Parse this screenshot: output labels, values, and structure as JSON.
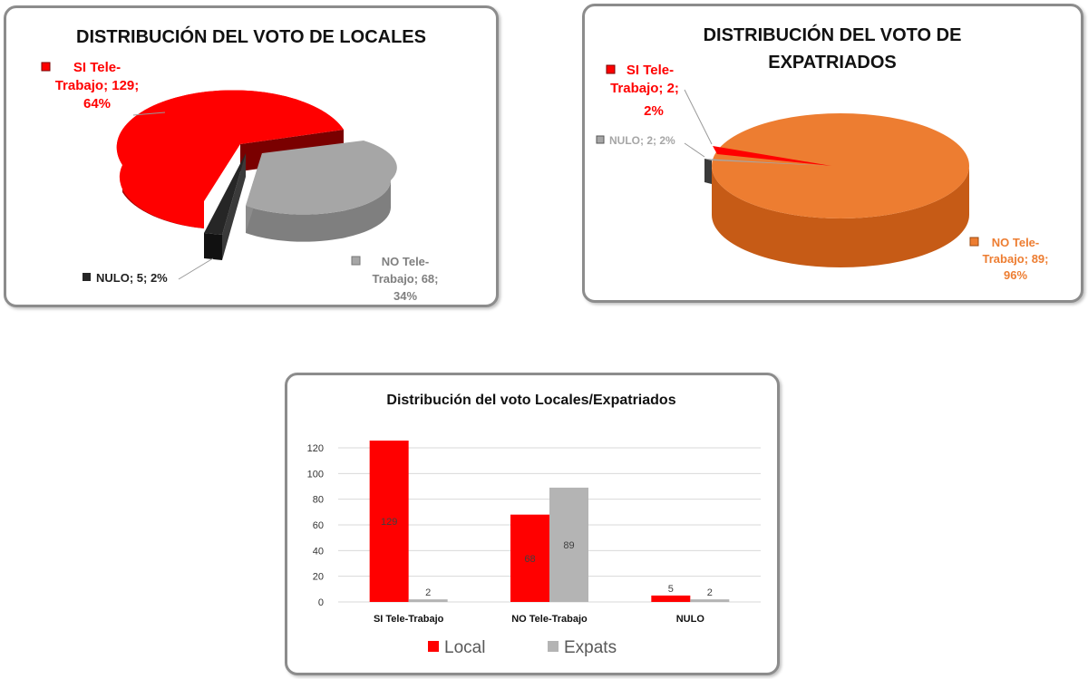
{
  "charts": {
    "locales": {
      "title": "DISTRIBUCIÓN DEL VOTO  DE LOCALES",
      "slices": [
        {
          "name_line1": "SI Tele-",
          "name_line2": "Trabajo;  129;",
          "pct": "64%",
          "value": 129,
          "color": "#ff0000"
        },
        {
          "name_line1": "NO Tele-",
          "name_line2": "Trabajo; 68;",
          "pct": "34%",
          "value": 68,
          "color": "#a6a6a6"
        },
        {
          "label": "NULO; 5; 2%",
          "value": 5,
          "color": "#262626"
        }
      ]
    },
    "expats": {
      "title_line1": "DISTRIBUCIÓN DEL VOTO  DE",
      "title_line2": "EXPATRIADOS",
      "slices": [
        {
          "name_line1": "SI Tele-",
          "name_line2": "Trabajo;  2;",
          "pct": "2%",
          "value": 2,
          "color": "#ff0000"
        },
        {
          "label": "NULO;  2;  2%",
          "value": 2,
          "color": "#a6a6a6"
        },
        {
          "name_line1": "NO Tele-",
          "name_line2": "Trabajo; 89;",
          "pct": "96%",
          "value": 89,
          "color": "#ed7d31"
        }
      ]
    },
    "bar": {
      "title": "Distribución del voto Locales/Expatriados"
    }
  },
  "chart_data": [
    {
      "type": "pie",
      "title": "DISTRIBUCIÓN DEL VOTO  DE LOCALES",
      "categories": [
        "SI Tele-Trabajo",
        "NO Tele-Trabajo",
        "NULO"
      ],
      "values": [
        129,
        68,
        5
      ],
      "percents": [
        64,
        34,
        2
      ],
      "colors": [
        "#ff0000",
        "#a6a6a6",
        "#262626"
      ]
    },
    {
      "type": "pie",
      "title": "DISTRIBUCIÓN DEL VOTO  DE EXPATRIADOS",
      "categories": [
        "SI Tele-Trabajo",
        "NULO",
        "NO Tele-Trabajo"
      ],
      "values": [
        2,
        2,
        89
      ],
      "percents": [
        2,
        2,
        96
      ],
      "colors": [
        "#ff0000",
        "#a6a6a6",
        "#ed7d31"
      ]
    },
    {
      "type": "bar",
      "title": "Distribución del voto Locales/Expatriados",
      "categories": [
        "SI Tele-Trabajo",
        "NO Tele-Trabajo",
        "NULO"
      ],
      "series": [
        {
          "name": "Local",
          "values": [
            129,
            68,
            5
          ],
          "color": "#ff0000"
        },
        {
          "name": "Expats",
          "values": [
            2,
            89,
            2
          ],
          "color": "#b4b4b4"
        }
      ],
      "ylim": [
        0,
        120
      ],
      "yticks": [
        0,
        20,
        40,
        60,
        80,
        100,
        120
      ],
      "grid": true,
      "legend": "bottom"
    }
  ]
}
